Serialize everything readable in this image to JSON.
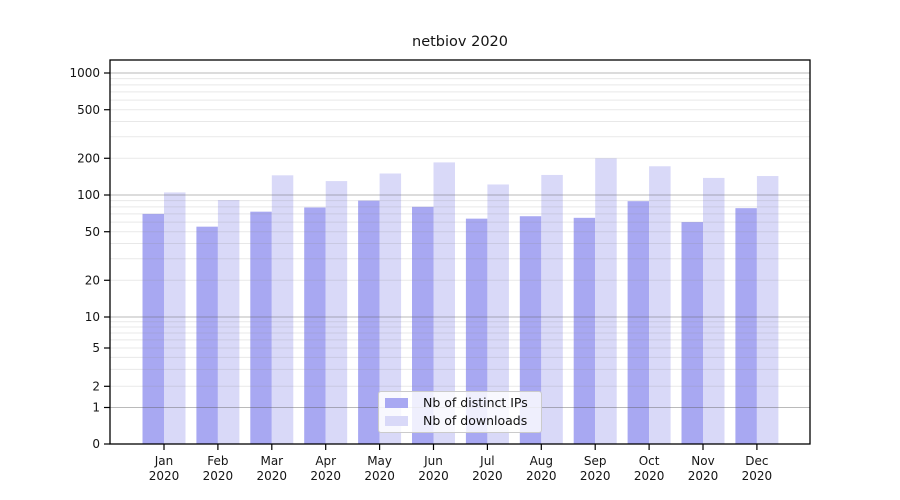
{
  "chart_data": {
    "type": "bar",
    "title": "netbiov 2020",
    "categories": [
      "Jan 2020",
      "Feb 2020",
      "Mar 2020",
      "Apr 2020",
      "May 2020",
      "Jun 2020",
      "Jul 2020",
      "Aug 2020",
      "Sep 2020",
      "Oct 2020",
      "Nov 2020",
      "Dec 2020"
    ],
    "series": [
      {
        "name": "Nb of distinct IPs",
        "color": "#a8a8f2",
        "values": [
          70,
          55,
          73,
          79,
          90,
          80,
          64,
          67,
          65,
          89,
          60,
          78
        ]
      },
      {
        "name": "Nb of downloads",
        "color": "#d9d9f8",
        "values": [
          105,
          91,
          145,
          130,
          150,
          185,
          122,
          146,
          200,
          172,
          138,
          143
        ]
      }
    ],
    "yscale": "symlog",
    "yticks": [
      0,
      1,
      2,
      5,
      10,
      20,
      50,
      100,
      200,
      500,
      1000
    ],
    "ylim": [
      0,
      1300
    ],
    "grid": true,
    "legend_position": "lower center",
    "axis_color": "#000000",
    "major_grid_color": "#b3b3b3",
    "minor_grid_color": "#e8e8e8"
  }
}
